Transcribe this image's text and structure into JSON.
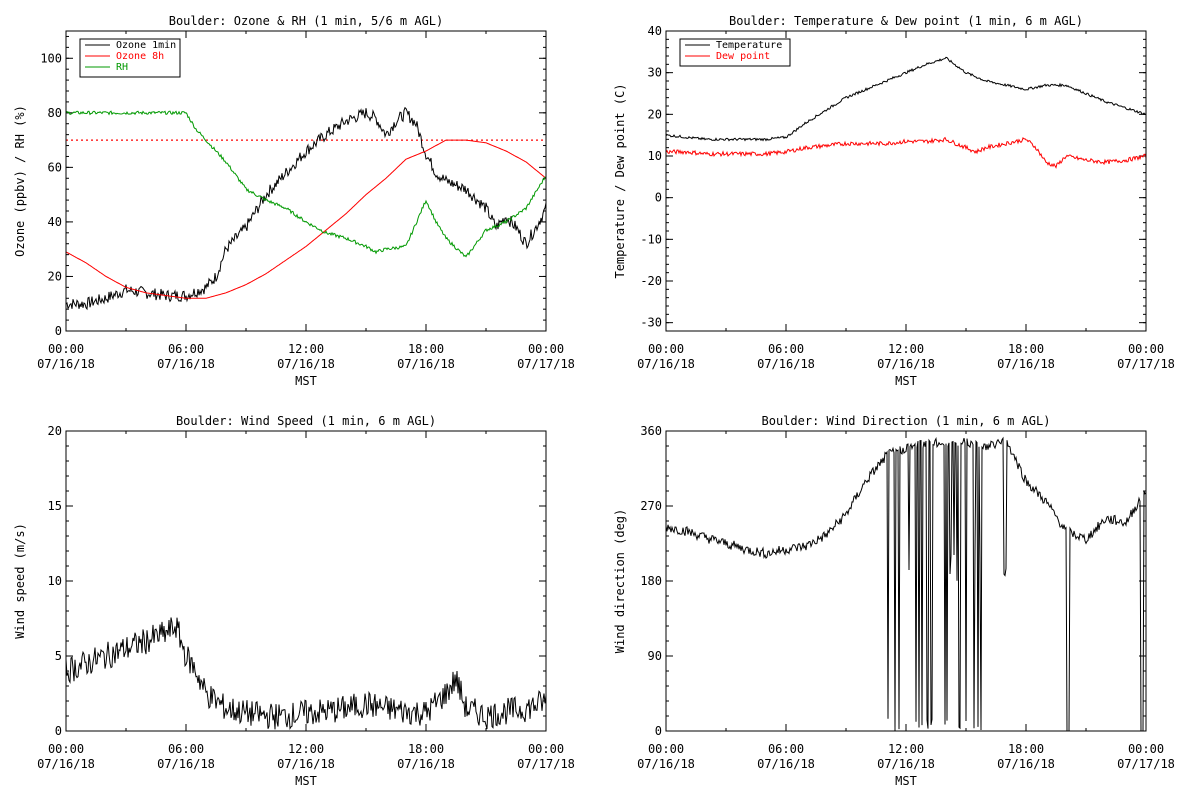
{
  "chart_data": [
    {
      "id": "ozone",
      "type": "line",
      "title": "Boulder: Ozone & RH (1 min, 5/6 m AGL)",
      "xlabel": "MST",
      "ylabel": "Ozone (ppbv) / RH (%)",
      "xlim": [
        0,
        24
      ],
      "ylim": [
        0,
        110
      ],
      "yticks": [
        0,
        20,
        40,
        60,
        80,
        100
      ],
      "xticks": [
        0,
        6,
        12,
        18,
        24
      ],
      "xticklabels": [
        [
          "00:00",
          "07/16/18"
        ],
        [
          "06:00",
          "07/16/18"
        ],
        [
          "12:00",
          "07/16/18"
        ],
        [
          "18:00",
          "07/16/18"
        ],
        [
          "00:00",
          "07/17/18"
        ]
      ],
      "legend": "top-left",
      "reference_line": {
        "y": 70,
        "color": "#ff0000",
        "style": "dotted"
      },
      "series": [
        {
          "name": "Ozone 1min",
          "color": "#000000",
          "noise": 2.2,
          "x": [
            0,
            1,
            2,
            3,
            4,
            5,
            6,
            7,
            7.5,
            8,
            9,
            10,
            11,
            12,
            13,
            14,
            15,
            15.5,
            16,
            16.5,
            17,
            17.5,
            18,
            18.5,
            19,
            20,
            21,
            21.5,
            22,
            22.5,
            23,
            23.5,
            24
          ],
          "y": [
            10,
            10,
            12,
            15,
            14,
            13,
            13,
            16,
            20,
            30,
            38,
            50,
            58,
            66,
            72,
            77,
            80,
            78,
            72,
            77,
            80,
            76,
            65,
            58,
            55,
            52,
            45,
            38,
            42,
            38,
            32,
            38,
            45
          ]
        },
        {
          "name": "Ozone 8h",
          "color": "#ff0000",
          "noise": 0,
          "x": [
            0,
            1,
            2,
            3,
            4,
            5,
            6,
            7,
            8,
            9,
            10,
            11,
            12,
            13,
            14,
            15,
            16,
            17,
            18,
            19,
            20,
            21,
            22,
            23,
            24
          ],
          "y": [
            29,
            25,
            20,
            16,
            14,
            13,
            12,
            12,
            14,
            17,
            21,
            26,
            31,
            37,
            43,
            50,
            56,
            63,
            66,
            70,
            70,
            69,
            66,
            62,
            56
          ]
        },
        {
          "name": "RH",
          "color": "#009900",
          "noise": 0.6,
          "x": [
            0,
            1,
            2,
            3,
            4,
            5,
            6,
            6.5,
            7,
            8,
            9,
            10,
            11,
            12,
            13,
            14,
            15,
            15.5,
            16,
            17,
            18,
            18.5,
            19,
            20,
            20.5,
            21,
            22,
            23,
            24
          ],
          "y": [
            80,
            80,
            80,
            80,
            80,
            80,
            80,
            74,
            70,
            62,
            52,
            48,
            45,
            40,
            36,
            34,
            31,
            29,
            30,
            31,
            48,
            40,
            34,
            27,
            32,
            37,
            40,
            45,
            57
          ]
        }
      ]
    },
    {
      "id": "temp",
      "type": "line",
      "title": "Boulder: Temperature & Dew point (1 min, 6 m AGL)",
      "xlabel": "MST",
      "ylabel": "Temperature / Dew point (C)",
      "xlim": [
        0,
        24
      ],
      "ylim": [
        -32,
        40
      ],
      "yticks": [
        -30,
        -20,
        -10,
        0,
        10,
        20,
        30,
        40
      ],
      "xticks": [
        0,
        6,
        12,
        18,
        24
      ],
      "xticklabels": [
        [
          "00:00",
          "07/16/18"
        ],
        [
          "06:00",
          "07/16/18"
        ],
        [
          "12:00",
          "07/16/18"
        ],
        [
          "18:00",
          "07/16/18"
        ],
        [
          "00:00",
          "07/17/18"
        ]
      ],
      "legend": "top-left",
      "series": [
        {
          "name": "Temperature",
          "color": "#000000",
          "noise": 0.3,
          "x": [
            0,
            1,
            2,
            3,
            4,
            5,
            6,
            7,
            8,
            9,
            10,
            11,
            12,
            13,
            14,
            15,
            16,
            17,
            18,
            19,
            20,
            21,
            22,
            23,
            24
          ],
          "y": [
            15,
            14.5,
            14,
            14,
            14,
            14,
            14.5,
            18,
            21,
            24,
            26,
            28,
            30,
            32,
            33.5,
            30,
            28,
            27,
            26,
            27,
            27,
            25,
            23,
            21.5,
            20
          ]
        },
        {
          "name": "Dew point",
          "color": "#ff0000",
          "noise": 0.5,
          "x": [
            0,
            1,
            2,
            3,
            4,
            5,
            6,
            7,
            8,
            9,
            10,
            11,
            12,
            13,
            14,
            15,
            15.5,
            16,
            17,
            18,
            18.5,
            19,
            19.5,
            20,
            21,
            22,
            23,
            24
          ],
          "y": [
            11,
            11,
            10.5,
            10.5,
            10.5,
            10.5,
            11,
            12,
            12.5,
            13,
            13,
            13,
            13.5,
            13.5,
            14,
            12,
            11,
            12,
            13,
            14,
            12,
            8.5,
            7.5,
            10,
            9,
            8.5,
            9,
            10
          ]
        }
      ]
    },
    {
      "id": "wspd",
      "type": "line",
      "title": "Boulder: Wind Speed (1 min, 6 m AGL)",
      "xlabel": "MST",
      "ylabel": "Wind speed (m/s)",
      "xlim": [
        0,
        24
      ],
      "ylim": [
        0,
        20
      ],
      "yticks": [
        0,
        5,
        10,
        15,
        20
      ],
      "xticks": [
        0,
        6,
        12,
        18,
        24
      ],
      "xticklabels": [
        [
          "00:00",
          "07/16/18"
        ],
        [
          "06:00",
          "07/16/18"
        ],
        [
          "12:00",
          "07/16/18"
        ],
        [
          "18:00",
          "07/16/18"
        ],
        [
          "00:00",
          "07/17/18"
        ]
      ],
      "series": [
        {
          "name": "",
          "color": "#000000",
          "noise": 0.9,
          "x": [
            0,
            1,
            2,
            3,
            4,
            5,
            5.5,
            6,
            6.5,
            7,
            7.5,
            8,
            9,
            10,
            11,
            12,
            13,
            14,
            15,
            16,
            17,
            18,
            19,
            19.5,
            20,
            21,
            22,
            23,
            24
          ],
          "y": [
            4,
            4.5,
            5,
            5.5,
            6,
            6.5,
            7,
            5,
            4,
            2.5,
            2,
            1.5,
            1.2,
            1,
            1,
            1.2,
            1.3,
            1.5,
            1.8,
            1.5,
            1.3,
            1.2,
            2.5,
            3.5,
            1.5,
            1,
            1.3,
            1.5,
            2
          ]
        }
      ]
    },
    {
      "id": "wdir",
      "type": "line",
      "title": "Boulder: Wind Direction (1 min, 6 m AGL)",
      "xlabel": "MST",
      "ylabel": "Wind direction (deg)",
      "xlim": [
        0,
        24
      ],
      "ylim": [
        0,
        360
      ],
      "yticks": [
        0,
        90,
        180,
        270,
        360
      ],
      "xticks": [
        0,
        6,
        12,
        18,
        24
      ],
      "xticklabels": [
        [
          "00:00",
          "07/16/18"
        ],
        [
          "06:00",
          "07/16/18"
        ],
        [
          "12:00",
          "07/16/18"
        ],
        [
          "18:00",
          "07/16/18"
        ],
        [
          "00:00",
          "07/17/18"
        ]
      ],
      "series": [
        {
          "name": "",
          "color": "#000000",
          "noise": 6,
          "x": [
            0,
            1,
            2,
            3,
            4,
            5,
            6,
            7,
            8,
            9,
            10,
            11,
            12,
            13,
            14,
            15,
            16,
            17,
            18,
            19,
            20,
            21,
            22,
            23,
            24
          ],
          "y": [
            245,
            240,
            232,
            225,
            218,
            213,
            218,
            222,
            235,
            260,
            300,
            330,
            340,
            345,
            345,
            348,
            340,
            350,
            300,
            275,
            240,
            230,
            255,
            250,
            290
          ],
          "wrap_to_zero": [
            [
              10.8,
              17.0
            ]
          ],
          "drops_to_zero": [
            20.1,
            23.8
          ]
        }
      ]
    }
  ]
}
